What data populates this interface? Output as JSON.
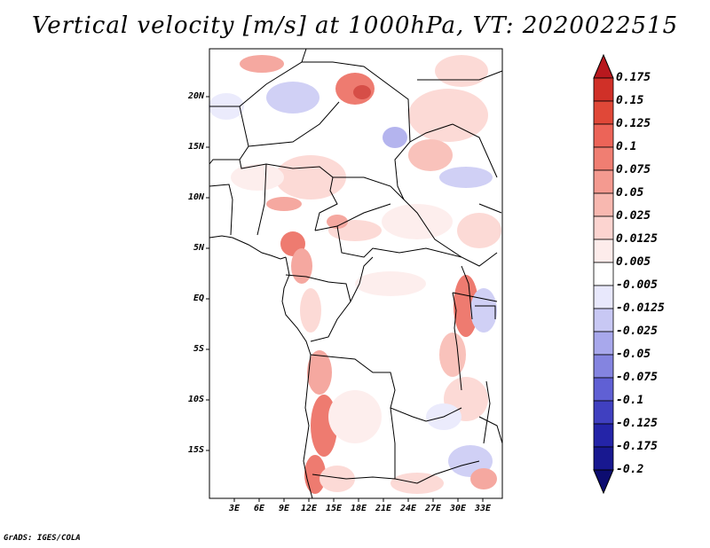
{
  "title": "Vertical velocity [m/s] at 1000hPa, VT: 2020022515",
  "map": {
    "lat_labels": [
      "20N",
      "15N",
      "10N",
      "5N",
      "EQ",
      "5S",
      "10S",
      "15S"
    ],
    "lon_labels": [
      "3E",
      "6E",
      "9E",
      "12E",
      "15E",
      "18E",
      "21E",
      "24E",
      "27E",
      "30E",
      "33E"
    ],
    "extent": {
      "lon_min": 0.5,
      "lon_max": 35,
      "lat_min": -20,
      "lat_max": 24.5
    }
  },
  "colorbar": {
    "levels": [
      "0.175",
      "0.15",
      "0.125",
      "0.1",
      "0.075",
      "0.05",
      "0.025",
      "0.0125",
      "0.005",
      "-0.005",
      "-0.0125",
      "-0.025",
      "-0.05",
      "-0.075",
      "-0.1",
      "-0.125",
      "-0.175",
      "-0.2"
    ],
    "colors": [
      "#b8181e",
      "#d03028",
      "#e04838",
      "#ec6458",
      "#f07e72",
      "#f49a90",
      "#f8b8b0",
      "#fcd4d0",
      "#fdeceb",
      "#ffffff",
      "#e8e8fc",
      "#c8c8f4",
      "#a8a8ec",
      "#8484e0",
      "#6060d4",
      "#4040c0",
      "#2424a8",
      "#181890",
      "#0c0c70"
    ]
  },
  "credit": "GrADS: IGES/COLA"
}
